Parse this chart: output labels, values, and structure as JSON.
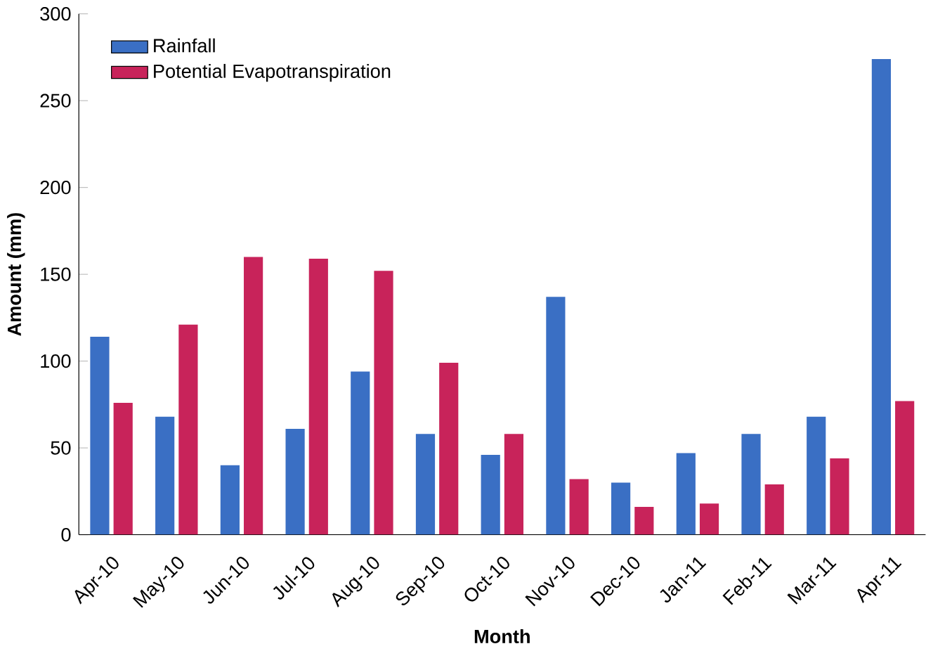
{
  "chart_data": {
    "type": "bar",
    "xlabel": "Month",
    "ylabel": "Amount (mm)",
    "categories": [
      "Apr-10",
      "May-10",
      "Jun-10",
      "Jul-10",
      "Aug-10",
      "Sep-10",
      "Oct-10",
      "Nov-10",
      "Dec-10",
      "Jan-11",
      "Feb-11",
      "Mar-11",
      "Apr-11"
    ],
    "series": [
      {
        "name": "Rainfall",
        "color": "#3a6fc4",
        "values": [
          114,
          68,
          40,
          61,
          94,
          58,
          46,
          137,
          30,
          47,
          58,
          68,
          274
        ]
      },
      {
        "name": "Potential Evapotranspiration",
        "color": "#c8235a",
        "values": [
          76,
          121,
          160,
          159,
          152,
          99,
          58,
          32,
          16,
          18,
          29,
          44,
          77
        ]
      }
    ],
    "ylim": [
      0,
      300
    ],
    "yticks": [
      0,
      50,
      100,
      150,
      200,
      250,
      300
    ],
    "legend": "top left"
  }
}
